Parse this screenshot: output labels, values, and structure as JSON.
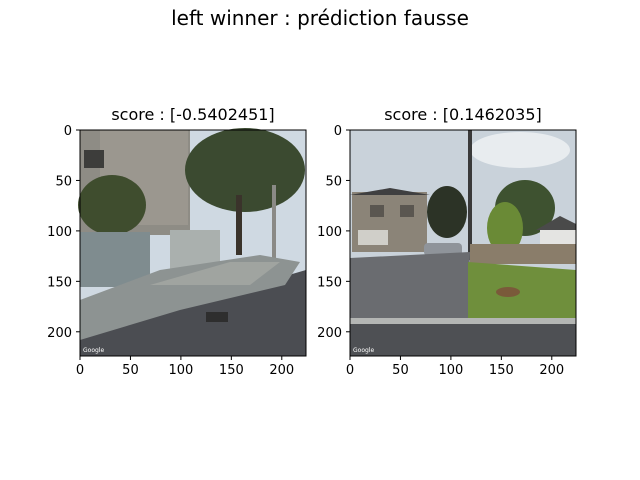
{
  "figure": {
    "suptitle": "left winner : prédiction fausse"
  },
  "panels": [
    {
      "title": "score : [-0.5402451]",
      "image_description_icon": "street-view-photo-icon",
      "xticks": [
        "0",
        "50",
        "100",
        "150",
        "200"
      ],
      "yticks": [
        "0",
        "50",
        "100",
        "150",
        "200"
      ],
      "watermark": "Google"
    },
    {
      "title": "score : [0.1462035]",
      "image_description_icon": "street-view-photo-icon",
      "xticks": [
        "0",
        "50",
        "100",
        "150",
        "200"
      ],
      "yticks": [
        "0",
        "50",
        "100",
        "150",
        "200"
      ],
      "watermark": "Google"
    }
  ],
  "colors": {
    "sky_left": "#cfd9e2",
    "sky_right": "#c9d2da",
    "building": "#8c8a83",
    "road": "#4b4d52",
    "grass": "#6f8f3c",
    "tree": "#3e4a2a"
  }
}
